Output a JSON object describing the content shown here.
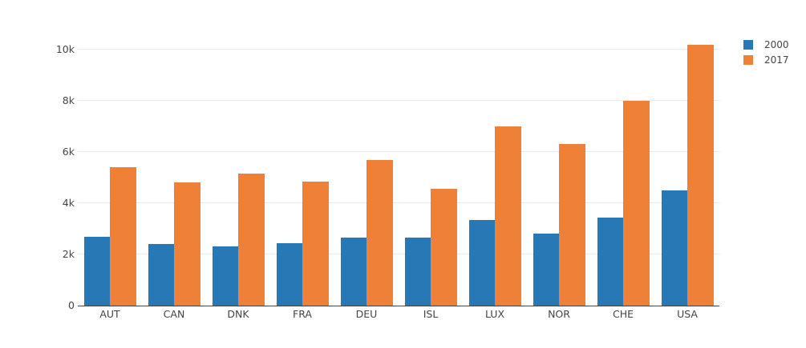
{
  "chart_data": {
    "type": "bar",
    "title": "",
    "xlabel": "",
    "ylabel": "",
    "categories": [
      "AUT",
      "CAN",
      "DNK",
      "FRA",
      "DEU",
      "ISL",
      "LUX",
      "NOR",
      "CHE",
      "USA"
    ],
    "series": [
      {
        "name": "2000",
        "color": "#2878b5",
        "values": [
          2700,
          2400,
          2300,
          2450,
          2650,
          2650,
          3350,
          2800,
          3450,
          4500
        ]
      },
      {
        "name": "2017",
        "color": "#ef8038",
        "values": [
          5400,
          4800,
          5150,
          4850,
          5700,
          4550,
          7000,
          6300,
          8000,
          10200
        ]
      }
    ],
    "ylim": [
      0,
      10000
    ],
    "yticks": [
      {
        "value": 0,
        "label": "0"
      },
      {
        "value": 2000,
        "label": "2k"
      },
      {
        "value": 4000,
        "label": "4k"
      },
      {
        "value": 6000,
        "label": "6k"
      },
      {
        "value": 8000,
        "label": "8k"
      },
      {
        "value": 10000,
        "label": "10k"
      }
    ],
    "grid": true,
    "legend_position": "top-right"
  },
  "colors": {
    "background": "#ffffff",
    "gridline": "#ebebeb",
    "axis_line": "#444444",
    "tick_text": "#444444",
    "series_2000": "#2878b5",
    "series_2017": "#ef8038"
  }
}
